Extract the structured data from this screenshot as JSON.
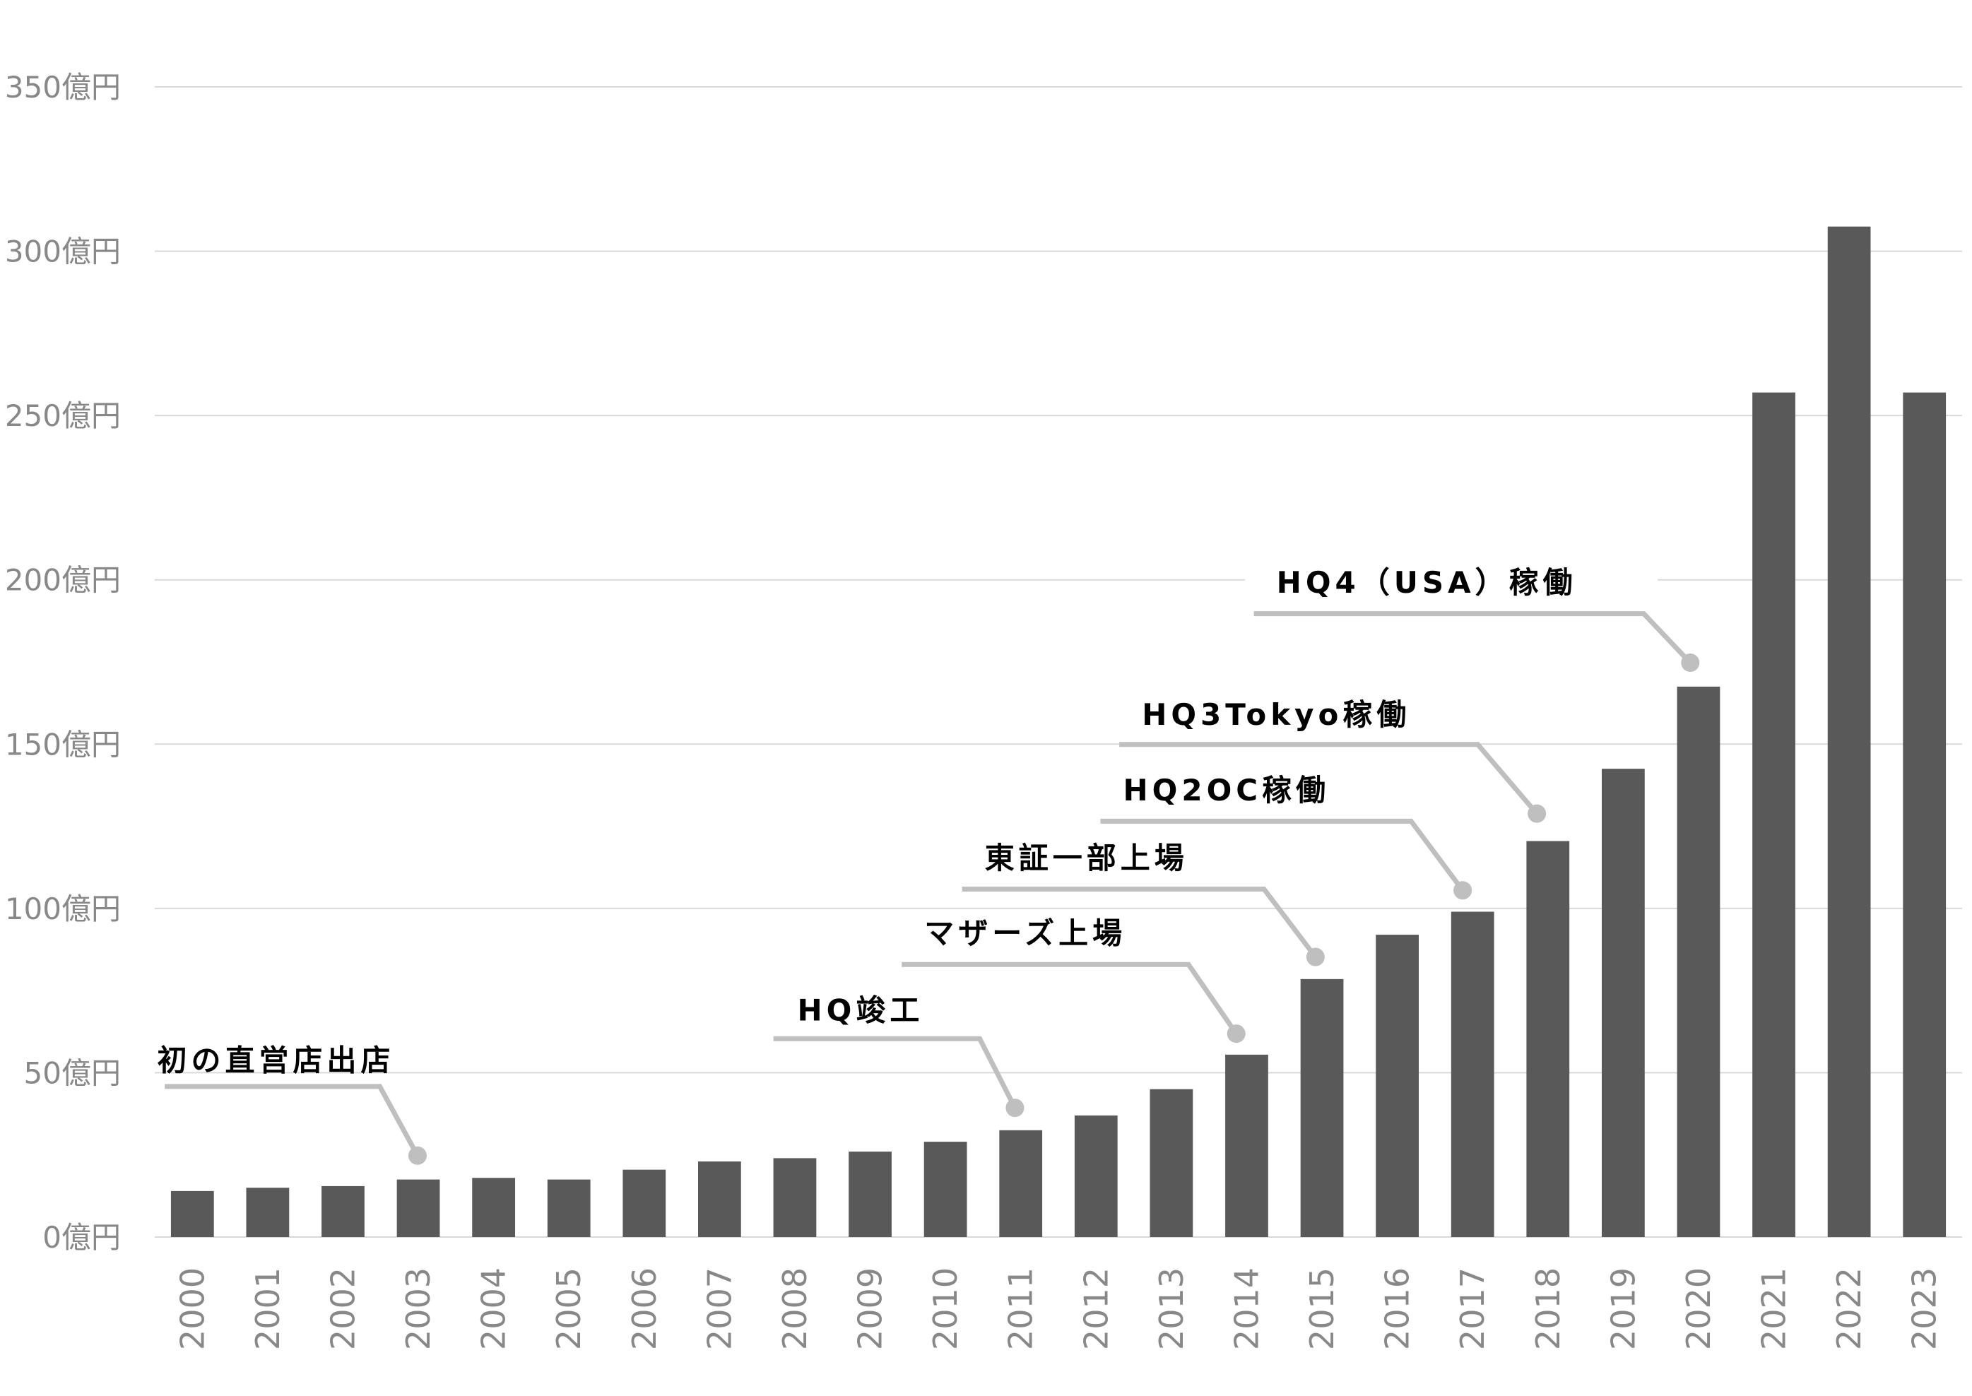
{
  "chart_data": {
    "type": "bar",
    "title": "",
    "xlabel": "",
    "ylabel": "",
    "unit": "億円",
    "ylim": [
      0,
      350
    ],
    "yticks": [
      0,
      50,
      100,
      150,
      200,
      250,
      300,
      350
    ],
    "ytick_labels": [
      "0億円",
      "50億円",
      "100億円",
      "150億円",
      "200億円",
      "250億円",
      "300億円",
      "350億円"
    ],
    "grid": true,
    "categories": [
      "2000",
      "2001",
      "2002",
      "2003",
      "2004",
      "2005",
      "2006",
      "2007",
      "2008",
      "2009",
      "2010",
      "2011",
      "2012",
      "2013",
      "2014",
      "2015",
      "2016",
      "2017",
      "2018",
      "2019",
      "2020",
      "2021",
      "2022",
      "2023"
    ],
    "values": [
      14,
      15,
      15.5,
      17.5,
      18,
      17.5,
      20.5,
      23,
      24,
      26,
      29,
      32.5,
      37,
      45,
      55.5,
      78.5,
      92,
      99,
      120.5,
      142.5,
      167.5,
      257,
      307.5,
      257
    ],
    "annotations": [
      {
        "year": "2003",
        "text": "初の直営店出店"
      },
      {
        "year": "2011",
        "text": "HQ竣工"
      },
      {
        "year": "2014",
        "text": "マザーズ上場"
      },
      {
        "year": "2015",
        "text": "東証一部上場"
      },
      {
        "year": "2017",
        "text": "HQ2OC稼働"
      },
      {
        "year": "2018",
        "text": "HQ3Tokyo稼働"
      },
      {
        "year": "2020",
        "text": "HQ4（USA）稼働"
      }
    ],
    "colors": {
      "bar": "#595959",
      "grid": "#d9d9d9",
      "callout": "#bfbfbf",
      "tick_text": "#888888",
      "annotation_text": "#000000"
    }
  }
}
